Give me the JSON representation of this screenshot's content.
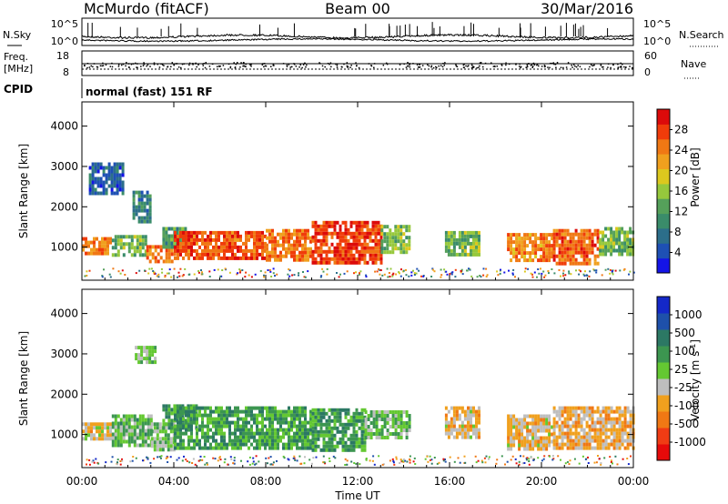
{
  "header": {
    "station": "McMurdo (fitACF)",
    "beam": "Beam 00",
    "date": "30/Mar/2016"
  },
  "noise_panel": {
    "left_label": "N.Sky",
    "right_label": "N.Search",
    "ticks_left": [
      "10^5",
      "10^0"
    ],
    "ticks_right": [
      "10^5",
      "10^0"
    ]
  },
  "freq_panel": {
    "left_label_1": "Freq.",
    "left_label_2": "[MHz]",
    "right_label": "Nave",
    "ticks_left": [
      "18",
      "8"
    ],
    "ticks_right": [
      "60",
      "0"
    ]
  },
  "cpid": {
    "label": "CPID",
    "text": "normal (fast) 151 RF"
  },
  "x_axis": {
    "label": "Time UT",
    "ticks": [
      "00:00",
      "04:00",
      "08:00",
      "12:00",
      "16:00",
      "20:00",
      "00:00"
    ]
  },
  "chart_data": [
    {
      "type": "heatmap",
      "name": "power",
      "ylabel": "Slant Range [km]",
      "yticks": [
        1000,
        2000,
        3000,
        4000
      ],
      "ylim": [
        180,
        4600
      ],
      "xlim_hours": [
        0,
        24
      ],
      "colorbar": {
        "label": "Power [dB]",
        "ticks": [
          "28",
          "24",
          "20",
          "16",
          "12",
          "8",
          "4"
        ],
        "range": [
          0,
          32
        ],
        "colors": [
          "#1414e6",
          "#1e50b4",
          "#2c6e8a",
          "#3a8c6a",
          "#55a05a",
          "#96c83c",
          "#dcc81e",
          "#f0a01e",
          "#f07814",
          "#f03c0a",
          "#dc0a0a"
        ]
      },
      "regions": [
        {
          "t0": 0.0,
          "t1": 1.3,
          "r0": 850,
          "r1": 1250,
          "value": 24
        },
        {
          "t0": 1.3,
          "t1": 2.8,
          "r0": 800,
          "r1": 1300,
          "value": 14
        },
        {
          "t0": 2.8,
          "t1": 4.0,
          "r0": 650,
          "r1": 1050,
          "value": 25
        },
        {
          "t0": 3.5,
          "t1": 4.5,
          "r0": 1000,
          "r1": 1500,
          "value": 12
        },
        {
          "t0": 4.0,
          "t1": 8.0,
          "r0": 700,
          "r1": 1400,
          "value": 27
        },
        {
          "t0": 8.0,
          "t1": 10.0,
          "r0": 700,
          "r1": 1450,
          "value": 25
        },
        {
          "t0": 10.0,
          "t1": 13.0,
          "r0": 650,
          "r1": 1650,
          "value": 28
        },
        {
          "t0": 13.0,
          "t1": 14.3,
          "r0": 900,
          "r1": 1550,
          "value": 15
        },
        {
          "t0": 15.8,
          "t1": 17.3,
          "r0": 850,
          "r1": 1400,
          "value": 14
        },
        {
          "t0": 18.5,
          "t1": 20.5,
          "r0": 650,
          "r1": 1350,
          "value": 24
        },
        {
          "t0": 20.5,
          "t1": 22.5,
          "r0": 600,
          "r1": 1450,
          "value": 26
        },
        {
          "t0": 22.5,
          "t1": 24.0,
          "r0": 800,
          "r1": 1500,
          "value": 14
        },
        {
          "t0": 0.3,
          "t1": 1.8,
          "r0": 2300,
          "r1": 3100,
          "value": 6
        },
        {
          "t0": 2.2,
          "t1": 3.0,
          "r0": 1600,
          "r1": 2400,
          "value": 9
        }
      ]
    },
    {
      "type": "heatmap",
      "name": "velocity",
      "ylabel": "Slant Range [km]",
      "yticks": [
        1000,
        2000,
        3000,
        4000
      ],
      "ylim": [
        180,
        4600
      ],
      "xlim_hours": [
        0,
        24
      ],
      "colorbar": {
        "label": "Velocity [m s^-1]",
        "ticks": [
          "1000",
          "500",
          "100",
          "25",
          "-25",
          "-100",
          "-500",
          "-1000"
        ],
        "range": [
          -1200,
          1200
        ],
        "colors": [
          "#e60a0a",
          "#f03c14",
          "#f07814",
          "#f0a01e",
          "#bebebe",
          "#64c832",
          "#3c9650",
          "#2c7864",
          "#1e50aa",
          "#1428c8"
        ]
      },
      "regions": [
        {
          "t0": 0.0,
          "t1": 1.3,
          "r0": 850,
          "r1": 1300,
          "value": -200
        },
        {
          "t0": 1.3,
          "t1": 3.0,
          "r0": 700,
          "r1": 1500,
          "value": 200
        },
        {
          "t0": 3.0,
          "t1": 4.0,
          "r0": 650,
          "r1": 1300,
          "value": 80
        },
        {
          "t0": 3.5,
          "t1": 5.0,
          "r0": 1200,
          "r1": 1750,
          "value": 400
        },
        {
          "t0": 4.0,
          "t1": 8.0,
          "r0": 650,
          "r1": 1700,
          "value": 350
        },
        {
          "t0": 8.0,
          "t1": 10.0,
          "r0": 650,
          "r1": 1700,
          "value": 300
        },
        {
          "t0": 10.0,
          "t1": 12.3,
          "r0": 650,
          "r1": 1650,
          "value": 380
        },
        {
          "t0": 12.3,
          "t1": 14.3,
          "r0": 900,
          "r1": 1600,
          "value": 150
        },
        {
          "t0": 15.8,
          "t1": 17.3,
          "r0": 900,
          "r1": 1700,
          "value": -250
        },
        {
          "t0": 18.5,
          "t1": 20.5,
          "r0": 650,
          "r1": 1500,
          "value": -260
        },
        {
          "t0": 20.5,
          "t1": 24.0,
          "r0": 650,
          "r1": 1700,
          "value": -300
        },
        {
          "t0": 2.3,
          "t1": 3.2,
          "r0": 2800,
          "r1": 3200,
          "value": 10
        }
      ]
    }
  ]
}
